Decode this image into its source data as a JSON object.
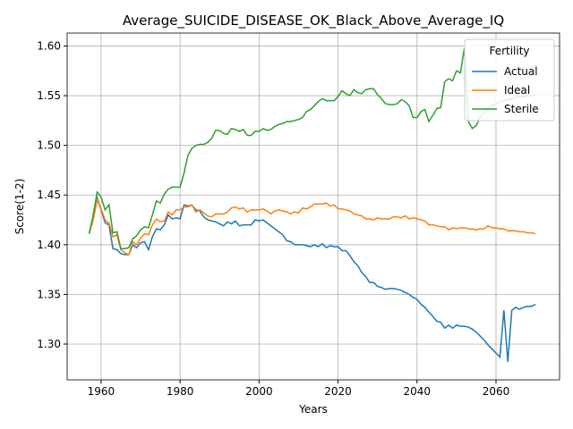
{
  "chart_data": {
    "type": "line",
    "title": "Average_SUICIDE_DISEASE_OK_Black_Above_Average_IQ",
    "x_label": "Years",
    "y_label": "Score(1-2)",
    "legend_title": "Fertility",
    "legend": "upper right",
    "grid": true,
    "x": [
      1957,
      1958,
      1959,
      1960,
      1961,
      1962,
      1963,
      1964,
      1965,
      1966,
      1967,
      1968,
      1969,
      1970,
      1971,
      1972,
      1973,
      1974,
      1975,
      1976,
      1977,
      1978,
      1979,
      1980,
      1981,
      1982,
      1983,
      1984,
      1985,
      1986,
      1987,
      1988,
      1989,
      1990,
      1991,
      1992,
      1993,
      1994,
      1995,
      1996,
      1997,
      1998,
      1999,
      2000,
      2001,
      2002,
      2003,
      2004,
      2005,
      2006,
      2007,
      2008,
      2009,
      2010,
      2011,
      2012,
      2013,
      2014,
      2015,
      2016,
      2017,
      2018,
      2019,
      2020,
      2021,
      2022,
      2023,
      2024,
      2025,
      2026,
      2027,
      2028,
      2029,
      2030,
      2031,
      2032,
      2033,
      2034,
      2035,
      2036,
      2037,
      2038,
      2039,
      2040,
      2041,
      2042,
      2043,
      2044,
      2045,
      2046,
      2047,
      2048,
      2049,
      2050,
      2051,
      2052,
      2053,
      2054,
      2055,
      2056,
      2057,
      2058,
      2059,
      2060,
      2061,
      2062,
      2063,
      2064,
      2065,
      2066,
      2067,
      2068,
      2069,
      2070
    ],
    "series": [
      {
        "name": "Actual",
        "color": "#1f77b4",
        "values": [
          1.412,
          1.428,
          1.447,
          1.435,
          1.422,
          1.42,
          1.396,
          1.395,
          1.391,
          1.39,
          1.39,
          1.4,
          1.397,
          1.402,
          1.403,
          1.395,
          1.408,
          1.416,
          1.415,
          1.42,
          1.43,
          1.426,
          1.427,
          1.426,
          1.44,
          1.439,
          1.44,
          1.435,
          1.434,
          1.428,
          1.425,
          1.424,
          1.423,
          1.421,
          1.419,
          1.423,
          1.421,
          1.424,
          1.419,
          1.42,
          1.42,
          1.42,
          1.425,
          1.424,
          1.425,
          1.422,
          1.419,
          1.416,
          1.413,
          1.41,
          1.404,
          1.403,
          1.4,
          1.4,
          1.4,
          1.399,
          1.398,
          1.4,
          1.398,
          1.401,
          1.397,
          1.399,
          1.398,
          1.398,
          1.394,
          1.394,
          1.389,
          1.383,
          1.379,
          1.372,
          1.368,
          1.362,
          1.362,
          1.358,
          1.357,
          1.355,
          1.356,
          1.356,
          1.355,
          1.354,
          1.352,
          1.35,
          1.347,
          1.345,
          1.34,
          1.337,
          1.332,
          1.328,
          1.323,
          1.322,
          1.316,
          1.319,
          1.316,
          1.319,
          1.318,
          1.318,
          1.317,
          1.315,
          1.312,
          1.308,
          1.304,
          1.299,
          1.295,
          1.291,
          1.287,
          1.334,
          1.282,
          1.334,
          1.337,
          1.335,
          1.337,
          1.338,
          1.338,
          1.34
        ]
      },
      {
        "name": "Ideal",
        "color": "#ff7f0e",
        "values": [
          1.412,
          1.425,
          1.445,
          1.436,
          1.425,
          1.422,
          1.408,
          1.41,
          1.395,
          1.392,
          1.39,
          1.403,
          1.4,
          1.407,
          1.411,
          1.41,
          1.42,
          1.426,
          1.423,
          1.424,
          1.433,
          1.43,
          1.435,
          1.435,
          1.438,
          1.438,
          1.44,
          1.433,
          1.435,
          1.432,
          1.429,
          1.428,
          1.431,
          1.431,
          1.431,
          1.433,
          1.437,
          1.438,
          1.436,
          1.437,
          1.433,
          1.435,
          1.435,
          1.435,
          1.436,
          1.434,
          1.431,
          1.434,
          1.435,
          1.434,
          1.433,
          1.431,
          1.433,
          1.432,
          1.437,
          1.436,
          1.438,
          1.441,
          1.441,
          1.441,
          1.442,
          1.439,
          1.44,
          1.436,
          1.436,
          1.435,
          1.434,
          1.431,
          1.43,
          1.429,
          1.426,
          1.426,
          1.425,
          1.427,
          1.426,
          1.426,
          1.426,
          1.428,
          1.428,
          1.427,
          1.429,
          1.426,
          1.427,
          1.426,
          1.425,
          1.424,
          1.42,
          1.42,
          1.419,
          1.418,
          1.418,
          1.415,
          1.417,
          1.416,
          1.417,
          1.417,
          1.416,
          1.416,
          1.415,
          1.416,
          1.416,
          1.419,
          1.417,
          1.417,
          1.416,
          1.416,
          1.414,
          1.414,
          1.414,
          1.413,
          1.413,
          1.412,
          1.412,
          1.411
        ]
      },
      {
        "name": "Sterile",
        "color": "#2ca02c",
        "values": [
          1.411,
          1.43,
          1.453,
          1.448,
          1.435,
          1.44,
          1.412,
          1.413,
          1.396,
          1.396,
          1.397,
          1.406,
          1.409,
          1.415,
          1.418,
          1.417,
          1.43,
          1.444,
          1.442,
          1.451,
          1.456,
          1.458,
          1.458,
          1.458,
          1.472,
          1.49,
          1.497,
          1.5,
          1.501,
          1.501,
          1.503,
          1.507,
          1.515,
          1.515,
          1.512,
          1.511,
          1.517,
          1.516,
          1.514,
          1.516,
          1.51,
          1.51,
          1.514,
          1.514,
          1.517,
          1.515,
          1.516,
          1.519,
          1.521,
          1.522,
          1.524,
          1.524,
          1.525,
          1.526,
          1.528,
          1.534,
          1.536,
          1.54,
          1.544,
          1.547,
          1.545,
          1.545,
          1.545,
          1.549,
          1.555,
          1.552,
          1.55,
          1.556,
          1.553,
          1.552,
          1.556,
          1.557,
          1.557,
          1.551,
          1.547,
          1.542,
          1.541,
          1.541,
          1.542,
          1.546,
          1.544,
          1.54,
          1.528,
          1.528,
          1.534,
          1.536,
          1.524,
          1.53,
          1.537,
          1.538,
          1.564,
          1.567,
          1.565,
          1.575,
          1.573,
          1.598,
          1.524,
          1.517,
          1.52,
          1.528,
          1.533,
          1.537,
          1.54,
          1.542,
          1.544,
          1.545,
          1.546,
          1.547,
          1.548,
          1.549,
          1.549,
          1.55,
          1.55,
          1.551
        ]
      }
    ],
    "xlim": [
      1951.4,
      2076.1
    ],
    "ylim": [
      1.264,
      1.613
    ],
    "xticks": [
      1960,
      1980,
      2000,
      2020,
      2040,
      2060
    ],
    "yticks": [
      {
        "value": 1.3,
        "label": "1.30"
      },
      {
        "value": 1.35,
        "label": "1.35"
      },
      {
        "value": 1.4,
        "label": "1.40"
      },
      {
        "value": 1.45,
        "label": "1.45"
      },
      {
        "value": 1.5,
        "label": "1.50"
      },
      {
        "value": 1.55,
        "label": "1.55"
      },
      {
        "value": 1.6,
        "label": "1.60"
      }
    ]
  }
}
